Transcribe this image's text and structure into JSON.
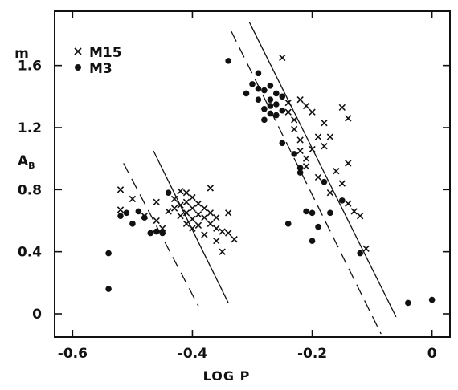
{
  "chart_data": {
    "type": "scatter",
    "title": "",
    "xlabel": "LOG P",
    "ylabel_top": "m",
    "ylabel_main": "A",
    "ylabel_sub": "B",
    "xlim": [
      -0.63,
      0.03
    ],
    "ylim": [
      -0.15,
      1.95
    ],
    "x_ticks": [
      -0.6,
      -0.4,
      -0.2,
      0
    ],
    "x_tick_labels": [
      "-0.6",
      "-0.4",
      "-0.2",
      "0"
    ],
    "y_ticks": [
      0,
      0.4,
      0.8,
      1.2,
      1.6
    ],
    "y_tick_labels": [
      "0",
      "0.4",
      "0.8",
      "1.2",
      "1.6"
    ],
    "grid": false,
    "legend_position": "top-left",
    "series": [
      {
        "name": "M15",
        "marker": "x",
        "points": [
          [
            -0.52,
            0.8
          ],
          [
            -0.52,
            0.67
          ],
          [
            -0.5,
            0.74
          ],
          [
            -0.48,
            0.63
          ],
          [
            -0.46,
            0.72
          ],
          [
            -0.46,
            0.6
          ],
          [
            -0.45,
            0.55
          ],
          [
            -0.44,
            0.66
          ],
          [
            -0.43,
            0.74
          ],
          [
            -0.43,
            0.68
          ],
          [
            -0.42,
            0.79
          ],
          [
            -0.42,
            0.7
          ],
          [
            -0.42,
            0.63
          ],
          [
            -0.41,
            0.78
          ],
          [
            -0.41,
            0.72
          ],
          [
            -0.41,
            0.65
          ],
          [
            -0.41,
            0.58
          ],
          [
            -0.4,
            0.75
          ],
          [
            -0.4,
            0.68
          ],
          [
            -0.4,
            0.61
          ],
          [
            -0.4,
            0.55
          ],
          [
            -0.39,
            0.71
          ],
          [
            -0.39,
            0.64
          ],
          [
            -0.39,
            0.57
          ],
          [
            -0.38,
            0.68
          ],
          [
            -0.38,
            0.62
          ],
          [
            -0.38,
            0.51
          ],
          [
            -0.37,
            0.81
          ],
          [
            -0.37,
            0.65
          ],
          [
            -0.37,
            0.58
          ],
          [
            -0.36,
            0.62
          ],
          [
            -0.36,
            0.55
          ],
          [
            -0.36,
            0.47
          ],
          [
            -0.35,
            0.53
          ],
          [
            -0.35,
            0.4
          ],
          [
            -0.34,
            0.65
          ],
          [
            -0.34,
            0.52
          ],
          [
            -0.33,
            0.48
          ],
          [
            -0.25,
            1.65
          ],
          [
            -0.24,
            1.36
          ],
          [
            -0.24,
            1.3
          ],
          [
            -0.23,
            1.25
          ],
          [
            -0.23,
            1.19
          ],
          [
            -0.22,
            1.38
          ],
          [
            -0.22,
            1.12
          ],
          [
            -0.22,
            1.05
          ],
          [
            -0.21,
            1.34
          ],
          [
            -0.21,
            1.0
          ],
          [
            -0.21,
            0.95
          ],
          [
            -0.2,
            1.3
          ],
          [
            -0.2,
            1.06
          ],
          [
            -0.19,
            1.14
          ],
          [
            -0.19,
            0.88
          ],
          [
            -0.18,
            1.23
          ],
          [
            -0.18,
            1.08
          ],
          [
            -0.17,
            1.14
          ],
          [
            -0.17,
            0.78
          ],
          [
            -0.16,
            0.92
          ],
          [
            -0.15,
            1.33
          ],
          [
            -0.15,
            0.84
          ],
          [
            -0.14,
            1.26
          ],
          [
            -0.14,
            0.97
          ],
          [
            -0.14,
            0.71
          ],
          [
            -0.13,
            0.66
          ],
          [
            -0.12,
            0.63
          ],
          [
            -0.11,
            0.42
          ]
        ]
      },
      {
        "name": "M3",
        "marker": "dot",
        "points": [
          [
            -0.54,
            0.39
          ],
          [
            -0.54,
            0.16
          ],
          [
            -0.52,
            0.63
          ],
          [
            -0.51,
            0.65
          ],
          [
            -0.5,
            0.58
          ],
          [
            -0.49,
            0.66
          ],
          [
            -0.48,
            0.62
          ],
          [
            -0.47,
            0.52
          ],
          [
            -0.46,
            0.53
          ],
          [
            -0.45,
            0.52
          ],
          [
            -0.44,
            0.78
          ],
          [
            -0.34,
            1.63
          ],
          [
            -0.31,
            1.42
          ],
          [
            -0.3,
            1.48
          ],
          [
            -0.29,
            1.55
          ],
          [
            -0.29,
            1.45
          ],
          [
            -0.29,
            1.38
          ],
          [
            -0.28,
            1.44
          ],
          [
            -0.28,
            1.32
          ],
          [
            -0.28,
            1.25
          ],
          [
            -0.27,
            1.47
          ],
          [
            -0.27,
            1.38
          ],
          [
            -0.27,
            1.34
          ],
          [
            -0.27,
            1.29
          ],
          [
            -0.26,
            1.42
          ],
          [
            -0.26,
            1.35
          ],
          [
            -0.26,
            1.28
          ],
          [
            -0.25,
            1.4
          ],
          [
            -0.25,
            1.31
          ],
          [
            -0.25,
            1.1
          ],
          [
            -0.24,
            0.58
          ],
          [
            -0.23,
            1.03
          ],
          [
            -0.22,
            0.94
          ],
          [
            -0.22,
            0.91
          ],
          [
            -0.21,
            0.66
          ],
          [
            -0.2,
            0.65
          ],
          [
            -0.2,
            0.47
          ],
          [
            -0.19,
            0.56
          ],
          [
            -0.18,
            0.85
          ],
          [
            -0.17,
            0.65
          ],
          [
            -0.15,
            0.73
          ],
          [
            -0.12,
            0.39
          ],
          [
            -0.04,
            0.07
          ],
          [
            0.0,
            0.09
          ]
        ]
      }
    ],
    "reference_lines": [
      {
        "style": "solid",
        "x1": -0.465,
        "y1": 1.05,
        "x2": -0.34,
        "y2": 0.07
      },
      {
        "style": "dashed",
        "x1": -0.515,
        "y1": 0.97,
        "x2": -0.39,
        "y2": 0.05
      },
      {
        "style": "solid",
        "x1": -0.305,
        "y1": 1.88,
        "x2": -0.06,
        "y2": -0.02
      },
      {
        "style": "dashed",
        "x1": -0.335,
        "y1": 1.82,
        "x2": -0.085,
        "y2": -0.13
      }
    ]
  }
}
